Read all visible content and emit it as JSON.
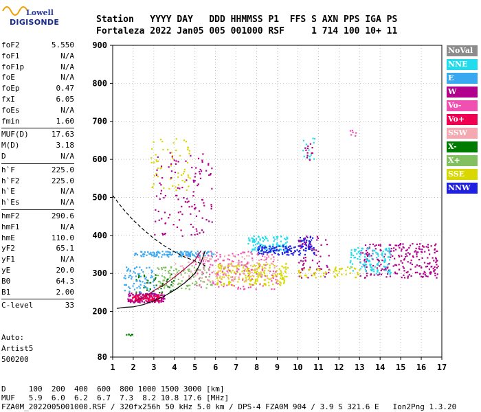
{
  "logo": {
    "line1": "Lowell",
    "line2": "DIGISONDE"
  },
  "header": {
    "line1": "Station   YYYY DAY   DDD HHMMSS P1  FFS S AXN PPS IGA PS",
    "line2": "Fortaleza 2022 Jan05 005 001000 RSF     1 714 100 10+ 11"
  },
  "params": [
    {
      "group": [
        [
          "foF2",
          "5.550"
        ],
        [
          "foF1",
          "N/A"
        ],
        [
          "foF1p",
          "N/A"
        ],
        [
          "foE",
          "N/A"
        ],
        [
          "foEp",
          "0.47"
        ],
        [
          "fxI",
          "6.05"
        ],
        [
          "foEs",
          "N/A"
        ],
        [
          "fmin",
          "1.60"
        ]
      ]
    },
    {
      "group": [
        [
          "MUF(D)",
          "17.63"
        ],
        [
          "M(D)",
          "3.18"
        ],
        [
          "D",
          "N/A"
        ]
      ]
    },
    {
      "group": [
        [
          "h`F",
          "225.0"
        ],
        [
          "h`F2",
          "225.0"
        ],
        [
          "h`E",
          "N/A"
        ],
        [
          "h`Es",
          "N/A"
        ]
      ]
    },
    {
      "group": [
        [
          "hmF2",
          "290.6"
        ],
        [
          "hmF1",
          "N/A"
        ],
        [
          "hmE",
          "110.0"
        ],
        [
          "yF2",
          "65.1"
        ],
        [
          "yF1",
          "N/A"
        ],
        [
          "yE",
          "20.0"
        ],
        [
          "B0",
          "64.3"
        ],
        [
          "B1",
          "2.00"
        ]
      ]
    },
    {
      "group": [
        [
          "C-level",
          "33"
        ]
      ]
    }
  ],
  "auto": {
    "line1": "Auto:",
    "line2": "Artist5",
    "line3": "500200"
  },
  "footer": {
    "line1": "D     100  200  400  600  800 1000 1500 3000 [km]",
    "line2": "MUF   5.9  6.0  6.2  6.7  7.3  8.2 10.8 17.6 [MHz]",
    "line3": "FZA0M_2022005001000.RSF / 320fx256h 50 kHz 5.0 km / DPS-4 FZA0M 904 / 3.9 S 321.6 E   Ion2Png 1.3.20"
  },
  "legend": [
    {
      "label": "NoVal",
      "color": "#8c8c8c"
    },
    {
      "label": "NNE",
      "color": "#22dcee"
    },
    {
      "label": "E",
      "color": "#3aa8f0"
    },
    {
      "label": "W",
      "color": "#b0008c"
    },
    {
      "label": "Vo-",
      "color": "#f050b0"
    },
    {
      "label": "Vo+",
      "color": "#f00050"
    },
    {
      "label": "SSW",
      "color": "#f4a8b0"
    },
    {
      "label": "X-",
      "color": "#007a00"
    },
    {
      "label": "X+",
      "color": "#82c060"
    },
    {
      "label": "SSE",
      "color": "#d8d800"
    },
    {
      "label": "NNW",
      "color": "#2020e0"
    }
  ],
  "chart_data": {
    "type": "scatter",
    "title": "",
    "xlabel": "",
    "ylabel": "",
    "xlim": [
      1,
      17
    ],
    "ylim": [
      80,
      900
    ],
    "x_ticks": [
      1,
      2,
      3,
      4,
      5,
      6,
      7,
      8,
      9,
      10,
      11,
      12,
      13,
      14,
      15,
      16,
      17
    ],
    "y_ticks": [
      80,
      200,
      300,
      400,
      500,
      600,
      700,
      800,
      900
    ],
    "grid": "dotted",
    "clusters": [
      {
        "color": "#3aa8f0",
        "x": [
          2.0,
          5.9
        ],
        "y": [
          345,
          360
        ],
        "n": 120
      },
      {
        "color": "#b0008c",
        "x": [
          1.7,
          3.5
        ],
        "y": [
          225,
          250
        ],
        "n": 140
      },
      {
        "color": "#f00050",
        "x": [
          1.8,
          3.3
        ],
        "y": [
          228,
          245
        ],
        "n": 80
      },
      {
        "color": "#d8d800",
        "x": [
          6.0,
          9.5
        ],
        "y": [
          270,
          330
        ],
        "n": 220
      },
      {
        "color": "#d8d800",
        "x": [
          2.8,
          4.8
        ],
        "y": [
          520,
          660
        ],
        "n": 60
      },
      {
        "color": "#b0008c",
        "x": [
          3.0,
          5.8
        ],
        "y": [
          400,
          620
        ],
        "n": 120
      },
      {
        "color": "#22dcee",
        "x": [
          7.5,
          9.5
        ],
        "y": [
          360,
          400
        ],
        "n": 120
      },
      {
        "color": "#2020e0",
        "x": [
          8.0,
          10.8
        ],
        "y": [
          350,
          375
        ],
        "n": 120
      },
      {
        "color": "#2020e0",
        "x": [
          10.0,
          10.7
        ],
        "y": [
          370,
          400
        ],
        "n": 40
      },
      {
        "color": "#b0008c",
        "x": [
          13.0,
          16.8
        ],
        "y": [
          290,
          380
        ],
        "n": 240
      },
      {
        "color": "#22dcee",
        "x": [
          12.5,
          14.5
        ],
        "y": [
          300,
          370
        ],
        "n": 120
      },
      {
        "color": "#f050b0",
        "x": [
          5.0,
          9.0
        ],
        "y": [
          260,
          360
        ],
        "n": 150
      },
      {
        "color": "#82c060",
        "x": [
          3.0,
          5.8
        ],
        "y": [
          260,
          320
        ],
        "n": 100
      },
      {
        "color": "#f4a8b0",
        "x": [
          4.0,
          9.0
        ],
        "y": [
          280,
          350
        ],
        "n": 120
      },
      {
        "color": "#007a00",
        "x": [
          2.0,
          4.0
        ],
        "y": [
          250,
          300
        ],
        "n": 40
      },
      {
        "color": "#3aa8f0",
        "x": [
          1.5,
          3.0
        ],
        "y": [
          250,
          320
        ],
        "n": 70
      },
      {
        "color": "#22dcee",
        "x": [
          10.2,
          10.8
        ],
        "y": [
          600,
          660
        ],
        "n": 15
      },
      {
        "color": "#b0008c",
        "x": [
          10.3,
          10.7
        ],
        "y": [
          600,
          650
        ],
        "n": 12
      },
      {
        "color": "#f050b0",
        "x": [
          12.5,
          12.9
        ],
        "y": [
          660,
          680
        ],
        "n": 6
      },
      {
        "color": "#007a00",
        "x": [
          1.6,
          2.0
        ],
        "y": [
          138,
          143
        ],
        "n": 8
      },
      {
        "color": "#b0008c",
        "x": [
          10.0,
          11.5
        ],
        "y": [
          290,
          400
        ],
        "n": 60
      },
      {
        "color": "#d8d800",
        "x": [
          10.0,
          13.0
        ],
        "y": [
          290,
          320
        ],
        "n": 60
      }
    ],
    "curves": [
      {
        "style": "solid",
        "color": "#000000",
        "x": [
          1.2,
          1.6,
          2.0,
          2.5,
          3.0,
          3.5,
          4.0,
          4.5,
          5.0,
          5.3,
          5.5
        ],
        "y": [
          208,
          211,
          212,
          218,
          228,
          240,
          256,
          275,
          300,
          330,
          360
        ]
      },
      {
        "style": "dashed",
        "color": "#000000",
        "x": [
          1.0,
          1.5,
          2.0,
          2.5,
          3.0,
          3.5,
          4.0,
          4.5,
          5.0,
          5.5
        ],
        "y": [
          505,
          470,
          440,
          415,
          392,
          373,
          357,
          343,
          333,
          320
        ]
      },
      {
        "style": "solid",
        "color": "#a00040",
        "x": [
          2.1,
          2.6,
          3.0,
          3.5,
          4.0,
          4.5,
          5.0,
          5.3
        ],
        "y": [
          228,
          240,
          255,
          270,
          290,
          312,
          335,
          360
        ]
      }
    ]
  }
}
